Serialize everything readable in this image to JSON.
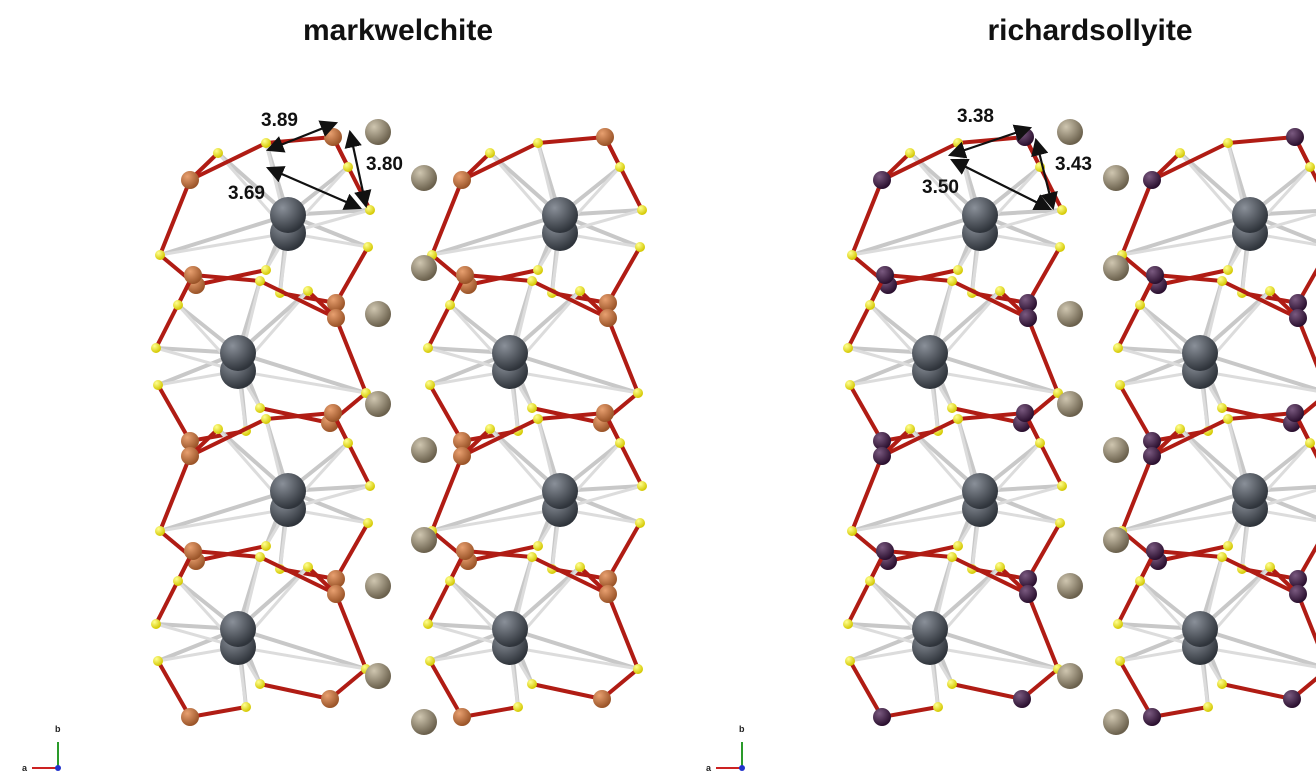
{
  "panels": [
    {
      "title": "markwelchite",
      "distances": [
        "3.89",
        "3.80",
        "3.69"
      ],
      "axis_labels": [
        "b",
        "a"
      ]
    },
    {
      "title": "richardsollyite",
      "distances": [
        "3.38",
        "3.43",
        "3.50"
      ],
      "axis_labels": [
        "b",
        "a"
      ]
    }
  ]
}
